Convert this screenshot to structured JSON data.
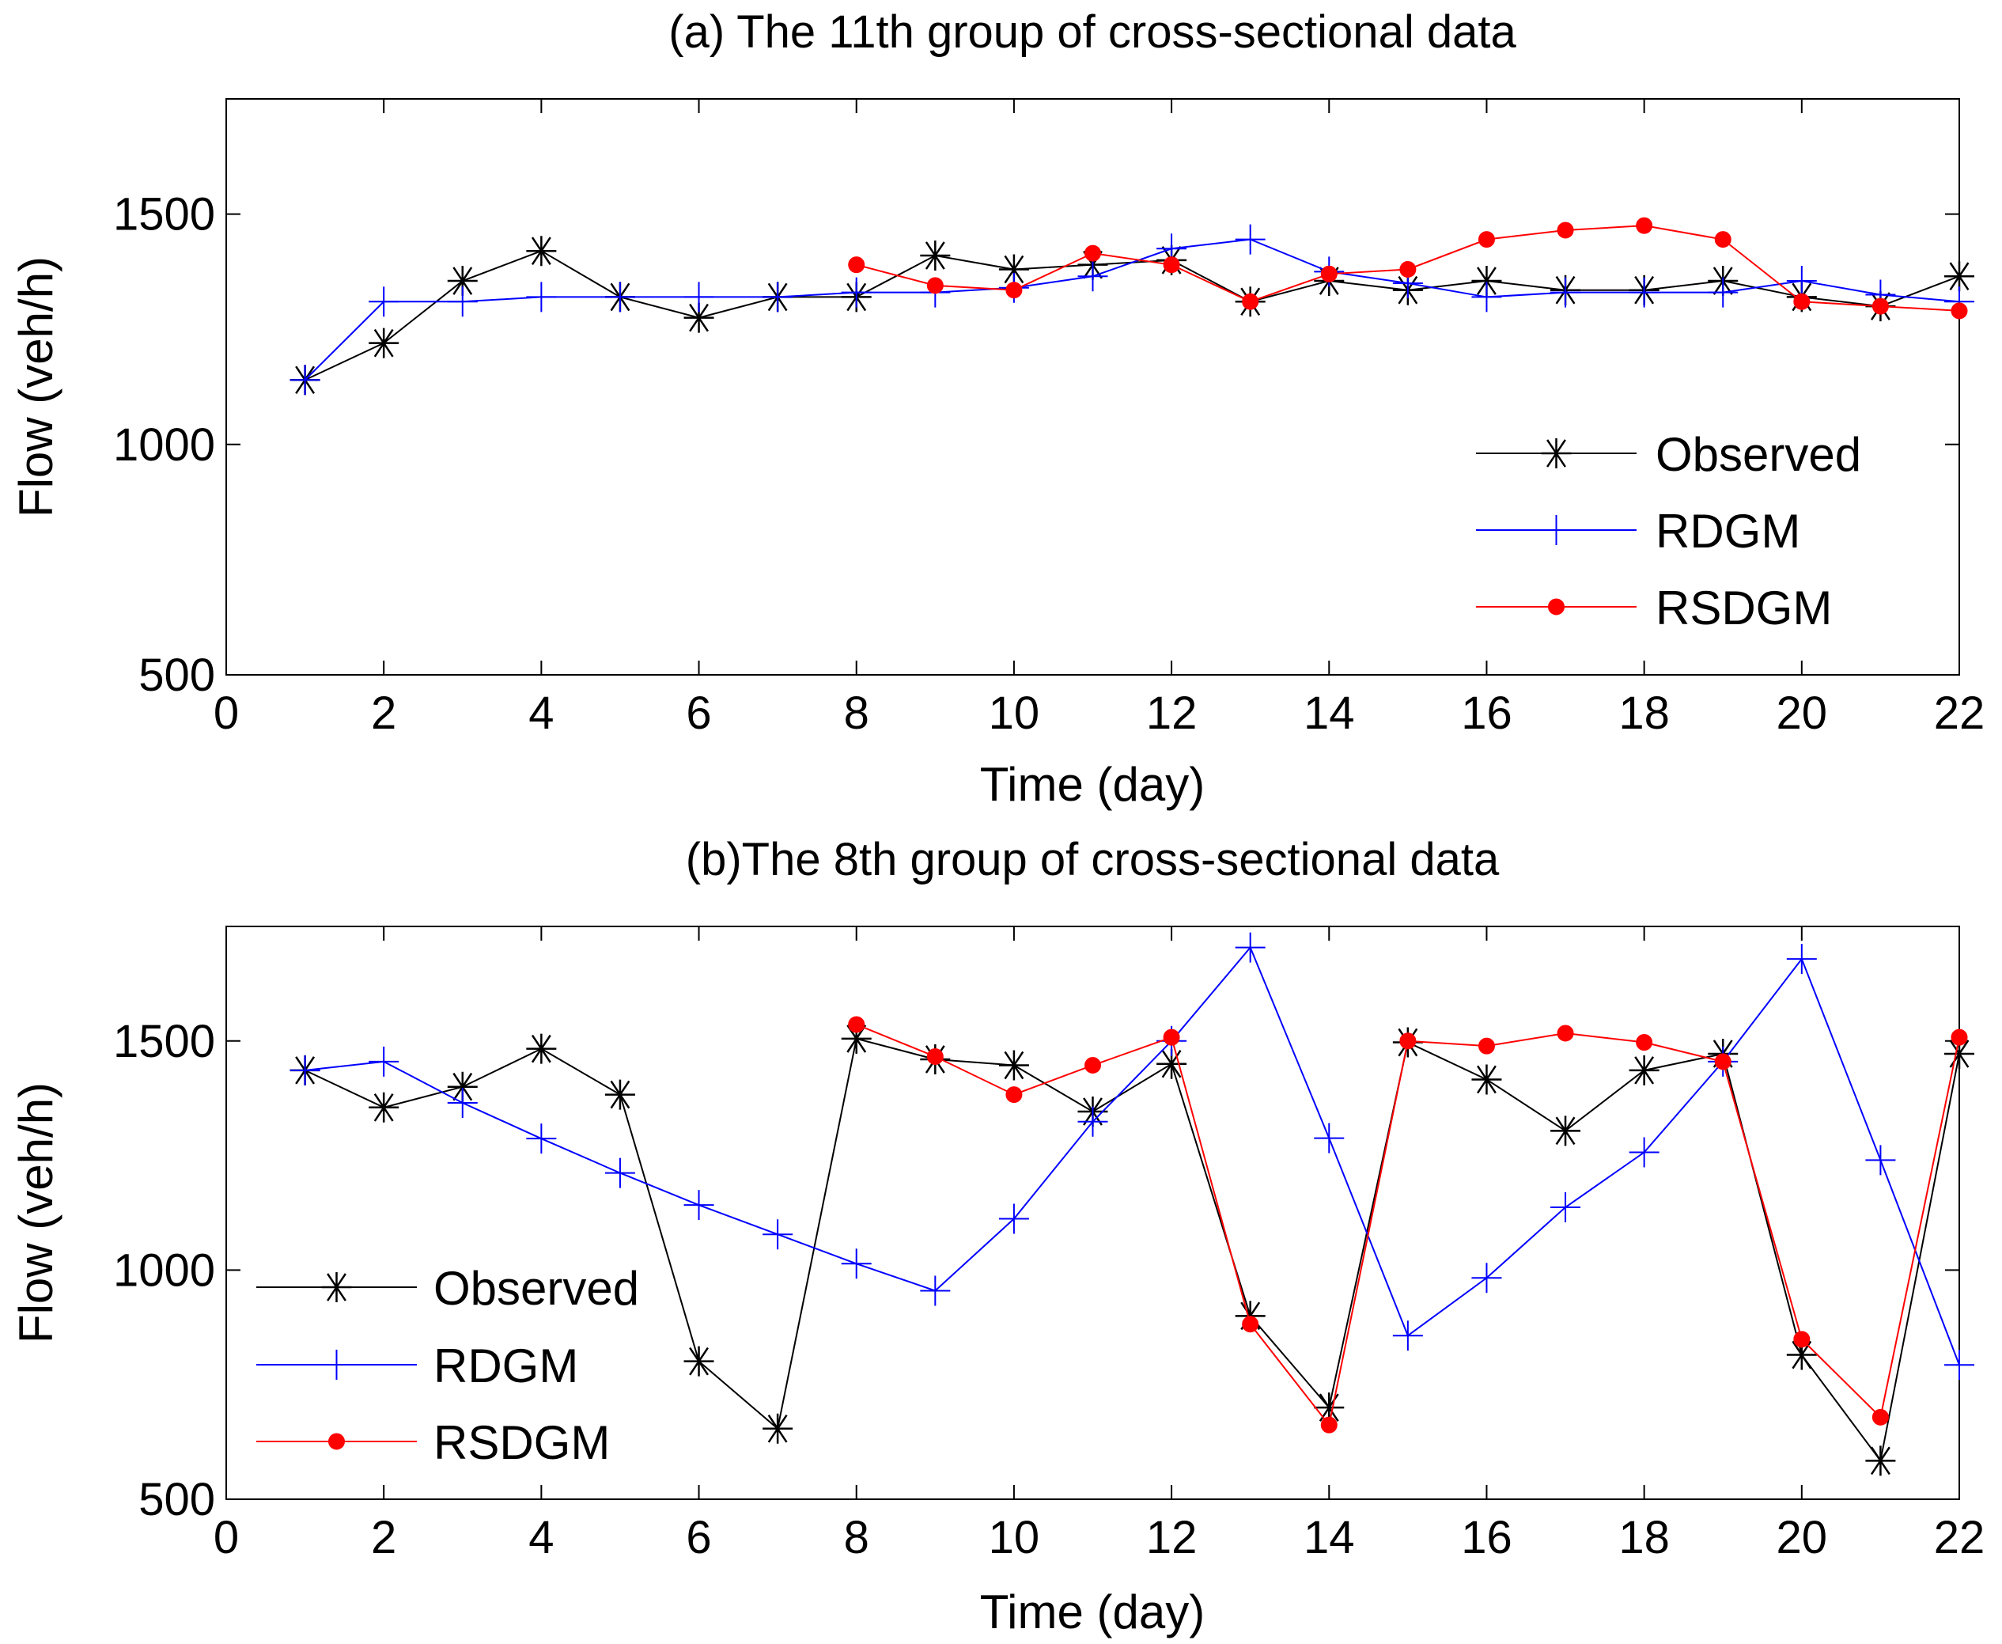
{
  "chart_data": [
    {
      "type": "line",
      "title": "(a) The 11th group of cross-sectional data",
      "xlabel": "Time (day)",
      "ylabel": "Flow (veh/h)",
      "xlim": [
        0,
        22
      ],
      "ylim": [
        500,
        1750
      ],
      "xticks": [
        0,
        2,
        4,
        6,
        8,
        10,
        12,
        14,
        16,
        18,
        20,
        22
      ],
      "yticks": [
        500,
        1000,
        1500
      ],
      "grid": false,
      "legend_position": "right",
      "series": [
        {
          "name": "Observed",
          "color": "#000000",
          "marker": "star",
          "x": [
            1,
            2,
            3,
            4,
            5,
            6,
            7,
            8,
            9,
            10,
            11,
            12,
            13,
            14,
            15,
            16,
            17,
            18,
            19,
            20,
            21,
            22
          ],
          "values": [
            1140,
            1220,
            1355,
            1420,
            1320,
            1275,
            1320,
            1320,
            1410,
            1380,
            1390,
            1400,
            1310,
            1355,
            1335,
            1355,
            1335,
            1335,
            1355,
            1320,
            1300,
            1365
          ]
        },
        {
          "name": "RDGM",
          "color": "#0000ff",
          "marker": "plus",
          "x": [
            1,
            2,
            3,
            4,
            5,
            6,
            7,
            8,
            9,
            10,
            11,
            12,
            13,
            14,
            15,
            16,
            17,
            18,
            19,
            20,
            21,
            22
          ],
          "values": [
            1140,
            1310,
            1310,
            1320,
            1320,
            1320,
            1320,
            1330,
            1330,
            1340,
            1365,
            1425,
            1445,
            1375,
            1350,
            1320,
            1330,
            1330,
            1330,
            1355,
            1325,
            1310
          ]
        },
        {
          "name": "RSDGM",
          "color": "#ff0000",
          "marker": "dot",
          "x": [
            8,
            9,
            10,
            11,
            12,
            13,
            14,
            15,
            16,
            17,
            18,
            19,
            20,
            21,
            22
          ],
          "values": [
            1390,
            1345,
            1335,
            1415,
            1390,
            1310,
            1370,
            1380,
            1445,
            1465,
            1475,
            1445,
            1310,
            1300,
            1290
          ]
        }
      ]
    },
    {
      "type": "line",
      "title": "(b)The 8th group of cross-sectional data",
      "xlabel": "Time (day)",
      "ylabel": "Flow (veh/h)",
      "xlim": [
        0,
        22
      ],
      "ylim": [
        500,
        1750
      ],
      "xticks": [
        0,
        2,
        4,
        6,
        8,
        10,
        12,
        14,
        16,
        18,
        20,
        22
      ],
      "yticks": [
        500,
        1000,
        1500
      ],
      "grid": false,
      "legend_position": "left",
      "series": [
        {
          "name": "Observed",
          "color": "#000000",
          "marker": "star",
          "x": [
            1,
            2,
            3,
            4,
            5,
            6,
            7,
            8,
            9,
            10,
            11,
            12,
            13,
            14,
            15,
            16,
            17,
            18,
            19,
            20,
            21,
            22
          ],
          "values": [
            1436,
            1355,
            1400,
            1483,
            1383,
            801,
            654,
            1505,
            1460,
            1447,
            1346,
            1450,
            900,
            700,
            1497,
            1416,
            1304,
            1436,
            1472,
            815,
            584,
            1472
          ]
        },
        {
          "name": "RDGM",
          "color": "#0000ff",
          "marker": "plus",
          "x": [
            1,
            2,
            3,
            4,
            5,
            6,
            7,
            8,
            9,
            10,
            11,
            12,
            13,
            14,
            15,
            16,
            17,
            18,
            19,
            20,
            21,
            22
          ],
          "values": [
            1436,
            1455,
            1365,
            1287,
            1212,
            1142,
            1078,
            1014,
            955,
            1112,
            1324,
            1500,
            1704,
            1288,
            857,
            983,
            1137,
            1257,
            1455,
            1679,
            1240,
            793
          ]
        },
        {
          "name": "RSDGM",
          "color": "#ff0000",
          "marker": "dot",
          "x": [
            8,
            9,
            10,
            11,
            12,
            13,
            14,
            15,
            16,
            17,
            18,
            19,
            20,
            21,
            22
          ],
          "values": [
            1536,
            1466,
            1383,
            1447,
            1508,
            882,
            662,
            1500,
            1489,
            1517,
            1497,
            1455,
            849,
            679,
            1508
          ]
        }
      ]
    }
  ]
}
